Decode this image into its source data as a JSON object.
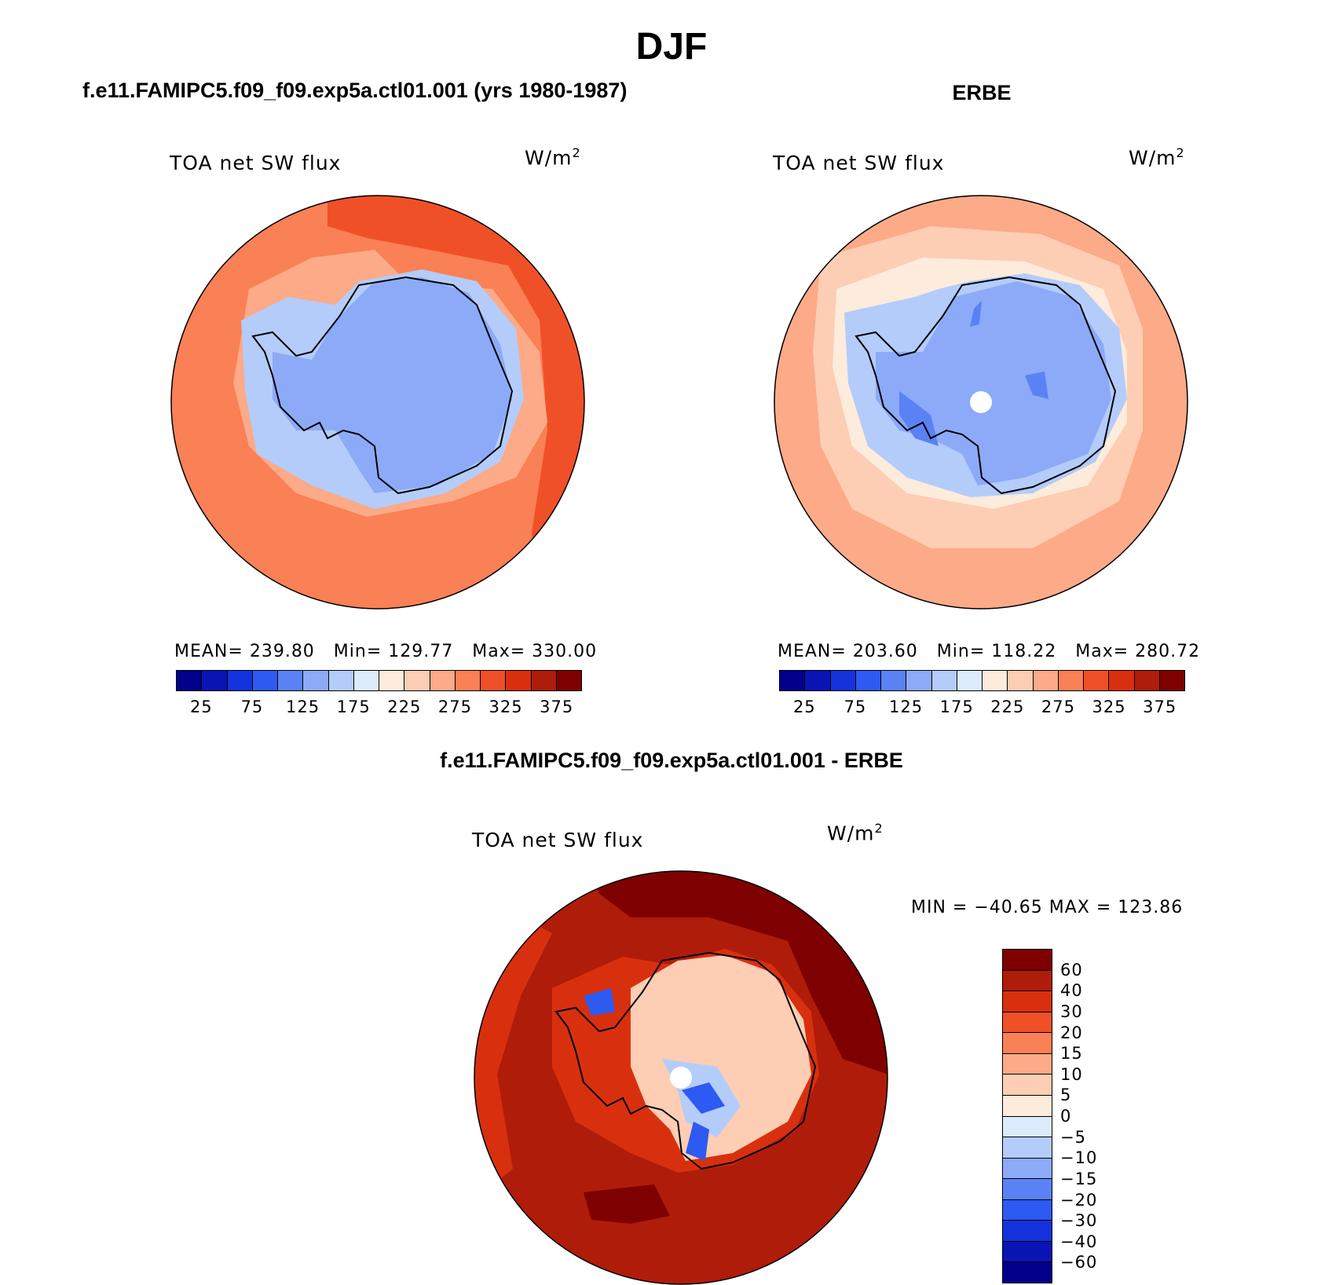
{
  "title": "DJF",
  "panels": {
    "model": {
      "header": "f.e11.FAMIPC5.f09_f09.exp5a.ctl01.001 (yrs 1980-1987)",
      "variable": "TOA net SW flux",
      "units_base": "W/m",
      "units_exp": "2",
      "mean_label": "MEAN=",
      "mean": "239.80",
      "min_label": "Min=",
      "min": "129.77",
      "max_label": "Max=",
      "max": "330.00"
    },
    "obs": {
      "header": "ERBE",
      "variable": "TOA net SW flux",
      "units_base": "W/m",
      "units_exp": "2",
      "mean_label": "MEAN=",
      "mean": "203.60",
      "min_label": "Min=",
      "min": "118.22",
      "max_label": "Max=",
      "max": "280.72"
    },
    "diff": {
      "header": "f.e11.FAMIPC5.f09_f09.exp5a.ctl01.001 - ERBE",
      "variable": "TOA net SW flux",
      "units_base": "W/m",
      "units_exp": "2",
      "stats_text": "MIN = −40.65 MAX = 123.86"
    }
  },
  "colorbar_abs": {
    "colors": [
      "#00008b",
      "#0a14b4",
      "#1432dc",
      "#2d5af0",
      "#5a82f5",
      "#8caaf8",
      "#b4ccfa",
      "#dcebfb",
      "#fdebdc",
      "#fdcdb4",
      "#fcaa87",
      "#fa8055",
      "#f05028",
      "#d8300f",
      "#b01c0a",
      "#7f0000"
    ],
    "ticks": [
      "25",
      "75",
      "125",
      "175",
      "225",
      "275",
      "325",
      "375"
    ]
  },
  "colorbar_diff": {
    "colors": [
      "#7f0000",
      "#b01c0a",
      "#d8300f",
      "#f05028",
      "#fa8055",
      "#fcaa87",
      "#fdcdb4",
      "#fdebdc",
      "#dcebfb",
      "#b4ccfa",
      "#8caaf8",
      "#5a82f5",
      "#2d5af0",
      "#1432dc",
      "#0a14b4",
      "#00008b"
    ],
    "ticks": [
      "60",
      "40",
      "30",
      "20",
      "15",
      "10",
      "5",
      "0",
      "−5",
      "−10",
      "−15",
      "−20",
      "−30",
      "−40",
      "−60"
    ]
  },
  "map_colors": {
    "model_ocean": "#fa8055",
    "model_warm": "#f05028",
    "model_shelf": "#fcaa87",
    "model_ice": "#8caaf8",
    "model_coast": "#b4ccfa",
    "obs_ocean": "#fcaa87",
    "obs_mid": "#fdcdb4",
    "obs_ring": "#fdebdc",
    "obs_coast": "#b4ccfa",
    "obs_ice": "#8caaf8",
    "obs_deep": "#5a82f5",
    "diff_ocean": "#b01c0a",
    "diff_outer": "#d8300f",
    "diff_max": "#7f0000",
    "diff_land": "#fdcdb4",
    "diff_neg": "#b4ccfa",
    "diff_neg_strong": "#2d5af0",
    "pole_hole": "#ffffff"
  }
}
